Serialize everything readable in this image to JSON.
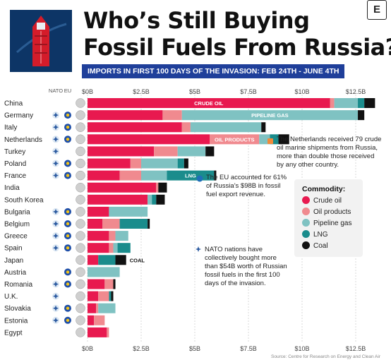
{
  "header": {
    "title_line1": "Who’s Still Buying",
    "title_line2": "Fossil Fuels From Russia?",
    "subtitle": "IMPORTS IN FIRST 100 DAYS OF THE INVASION: FEB 24TH - JUNE 4TH",
    "logo": "E"
  },
  "columns": {
    "nato": "NATO",
    "eu": "EU"
  },
  "colors": {
    "crude_oil": "#e8194f",
    "oil_products": "#f08a8f",
    "pipeline_gas": "#7fc2c2",
    "lng": "#1a8c8c",
    "coal": "#111111"
  },
  "chart_data": {
    "type": "bar",
    "orientation": "horizontal",
    "stacked": true,
    "x_ticks": [
      "$0B",
      "$2.5B",
      "$5B",
      "$7.5B",
      "$10B",
      "$12.5B"
    ],
    "xlim": [
      0,
      14
    ],
    "categories": [
      "China",
      "Germany",
      "Italy",
      "Netherlands",
      "Turkey",
      "Poland",
      "France",
      "India",
      "South Korea",
      "Bulgaria",
      "Belgium",
      "Greece",
      "Spain",
      "Japan",
      "Austria",
      "Romania",
      "U.K.",
      "Slovakia",
      "Estonia",
      "Egypt"
    ],
    "nato": [
      false,
      true,
      true,
      true,
      true,
      true,
      true,
      false,
      false,
      true,
      true,
      true,
      true,
      false,
      false,
      true,
      true,
      true,
      true,
      false
    ],
    "eu": [
      false,
      true,
      true,
      true,
      false,
      true,
      true,
      false,
      false,
      true,
      true,
      true,
      true,
      false,
      true,
      true,
      false,
      true,
      true,
      false
    ],
    "series": [
      {
        "name": "Crude oil",
        "values": [
          11.3,
          3.5,
          4.4,
          5.7,
          3.1,
          2.0,
          1.5,
          3.2,
          2.8,
          1.0,
          0.7,
          1.0,
          1.0,
          0.5,
          0,
          0.8,
          0.5,
          0.4,
          0.3,
          0.9
        ]
      },
      {
        "name": "Oil products",
        "values": [
          0.2,
          0.9,
          0.4,
          2.3,
          1.1,
          0.5,
          1.0,
          0.1,
          0,
          0,
          0.8,
          0.3,
          0.2,
          0,
          0,
          0.4,
          0.5,
          0.1,
          0.5,
          0.1
        ]
      },
      {
        "name": "Pipeline gas",
        "values": [
          1.1,
          8.2,
          3.3,
          0.5,
          1.3,
          1.7,
          1.2,
          0,
          0.2,
          1.8,
          0,
          0.6,
          0.2,
          0,
          1.5,
          0,
          0,
          0.8,
          0,
          0
        ]
      },
      {
        "name": "LNG",
        "values": [
          0.3,
          0,
          0,
          0.4,
          0,
          0.3,
          2.2,
          0,
          0.2,
          0,
          1.3,
          0,
          0.6,
          0.8,
          0,
          0,
          0.1,
          0,
          0,
          0
        ]
      },
      {
        "name": "Coal",
        "values": [
          0.5,
          0.3,
          0.2,
          0.5,
          0.4,
          0.2,
          0.1,
          0.4,
          0.4,
          0,
          0.1,
          0,
          0,
          0.5,
          0,
          0.1,
          0.1,
          0,
          0,
          0
        ]
      }
    ],
    "bar_labels": [
      {
        "category": "China",
        "series": "Crude oil",
        "text": "CRUDE OIL"
      },
      {
        "category": "Germany",
        "series": "Pipeline gas",
        "text": "PIPELINE GAS"
      },
      {
        "category": "Netherlands",
        "series": "Oil products",
        "text": "OIL PRODUCTS"
      },
      {
        "category": "France",
        "series": "LNG",
        "text": "LNG"
      }
    ],
    "outside_labels": [
      {
        "category": "Japan",
        "text": "COAL"
      }
    ]
  },
  "notes": {
    "netherlands": "The Netherlands received 79 crude oil marine shipments from Russia, more than double those received by any other country.",
    "eu": "The EU accounted for 61% of Russia’s $98B in fossil fuel export revenue.",
    "nato": "NATO nations have collectively bought more than $54B worth of Russian fossil fuels in the first 100 days of the invasion."
  },
  "legend": {
    "title": "Commodity:",
    "items": [
      "Crude oil",
      "Oil products",
      "Pipeline gas",
      "LNG",
      "Coal"
    ]
  },
  "source": "Source: Centre for Research on Energy and Clean Air"
}
